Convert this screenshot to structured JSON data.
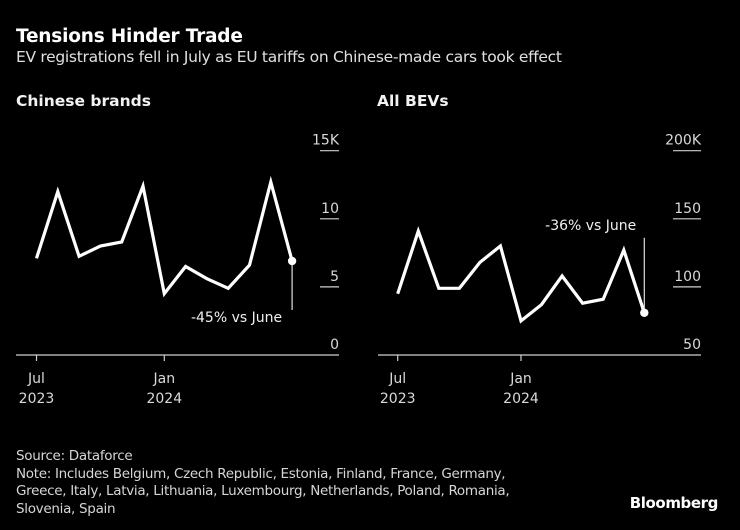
{
  "header": {
    "title": "Tensions Hinder Trade",
    "subtitle": "EV registrations fell in July as EU tariffs on Chinese-made cars took effect"
  },
  "chart_data": [
    {
      "type": "line",
      "title": "Chinese brands",
      "x": [
        "2023-07",
        "2023-08",
        "2023-09",
        "2023-10",
        "2023-11",
        "2023-12",
        "2024-01",
        "2024-02",
        "2024-03",
        "2024-04",
        "2024-05",
        "2024-06",
        "2024-07"
      ],
      "values": [
        7.1,
        12.0,
        7.25,
        8.0,
        8.3,
        12.4,
        4.5,
        6.5,
        5.6,
        4.9,
        6.6,
        12.7,
        6.9
      ],
      "unit": "thousands",
      "ylim": [
        0,
        15
      ],
      "yticks": [
        0,
        5,
        10,
        15
      ],
      "ytick_labels": [
        "0",
        "5",
        "10",
        "15K"
      ],
      "xticks": [
        {
          "index": 0,
          "line1": "Jul",
          "line2": "2023"
        },
        {
          "index": 6,
          "line1": "Jan",
          "line2": "2024"
        }
      ],
      "annotation": {
        "index": 12,
        "text": "-45% vs June",
        "position": "below"
      },
      "grid": false,
      "yaxis_side": "right",
      "color": "#ffffff"
    },
    {
      "type": "line",
      "title": "All BEVs",
      "x": [
        "2023-07",
        "2023-08",
        "2023-09",
        "2023-10",
        "2023-11",
        "2023-12",
        "2024-01",
        "2024-02",
        "2024-03",
        "2024-04",
        "2024-05",
        "2024-06",
        "2024-07"
      ],
      "values": [
        95,
        141,
        99,
        99,
        118,
        130,
        75,
        87,
        108,
        88,
        91,
        127,
        81
      ],
      "unit": "thousands",
      "ylim": [
        50,
        200
      ],
      "yticks": [
        50,
        100,
        150,
        200
      ],
      "ytick_labels": [
        "50",
        "100",
        "150",
        "200K"
      ],
      "xticks": [
        {
          "index": 0,
          "line1": "Jul",
          "line2": "2023"
        },
        {
          "index": 6,
          "line1": "Jan",
          "line2": "2024"
        }
      ],
      "annotation": {
        "index": 12,
        "text": "-36% vs June",
        "position": "above"
      },
      "grid": false,
      "yaxis_side": "right",
      "color": "#ffffff"
    }
  ],
  "footer": {
    "source": "Source: Dataforce",
    "note_lines": [
      "Note: Includes Belgium, Czech Republic, Estonia, Finland, France, Germany,",
      "Greece, Italy, Latvia, Lithuania, Luxembourg, Netherlands, Poland, Romania,",
      "Slovenia, Spain"
    ],
    "brand": "Bloomberg"
  }
}
